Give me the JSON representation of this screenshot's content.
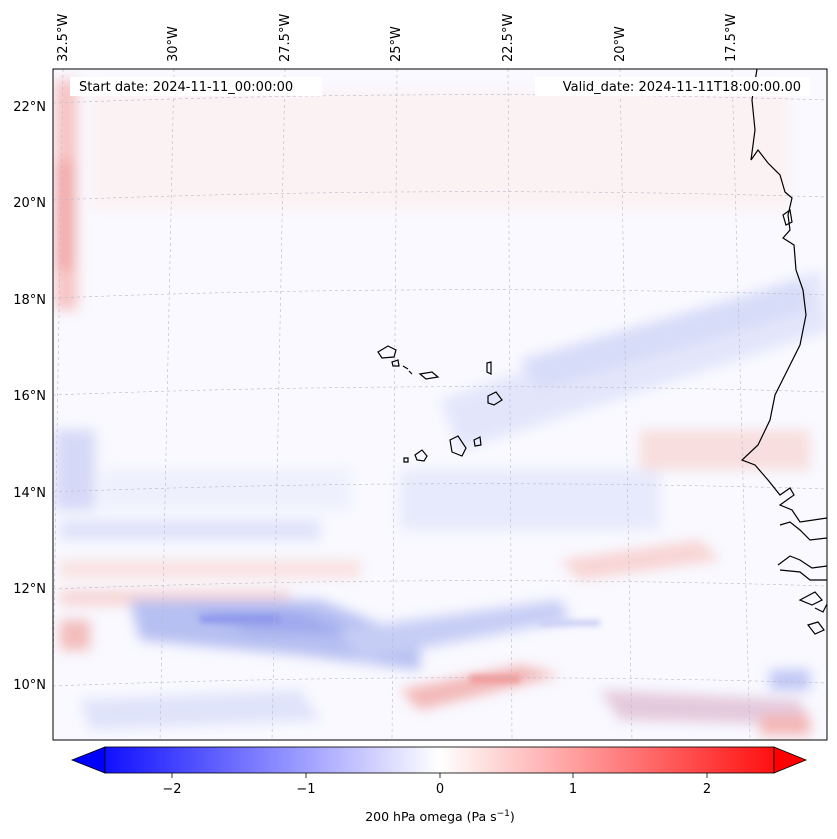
{
  "map": {
    "type": "filled-contour",
    "variable_label": "200 hPa omega (Pa s",
    "variable_unit_exponent": "−1",
    "variable_label_close": ")",
    "start_date_text": "Start date: 2024-11-11_00:00:00",
    "valid_date_text": "Valid_date: 2024-11-11T18:00:00.00",
    "lon_ticks": [
      "32.5°W",
      "30°W",
      "27.5°W",
      "25°W",
      "22.5°W",
      "20°W",
      "17.5°W"
    ],
    "lat_ticks": [
      "22°N",
      "20°N",
      "18°N",
      "16°N",
      "14°N",
      "12°N",
      "10°N"
    ],
    "colorbar": {
      "colormap": "bwr",
      "range": [
        -2.5,
        2.5
      ],
      "ticks": [
        "−2",
        "−1",
        "0",
        "1",
        "2"
      ],
      "extend": "both",
      "colors": {
        "min": "#0000ff",
        "mid": "#ffffff",
        "max": "#ff0000"
      }
    },
    "gridlines": "dashed",
    "coastline_color": "#000000",
    "land_features": [
      "Cape Verde islands",
      "West African coast"
    ]
  }
}
